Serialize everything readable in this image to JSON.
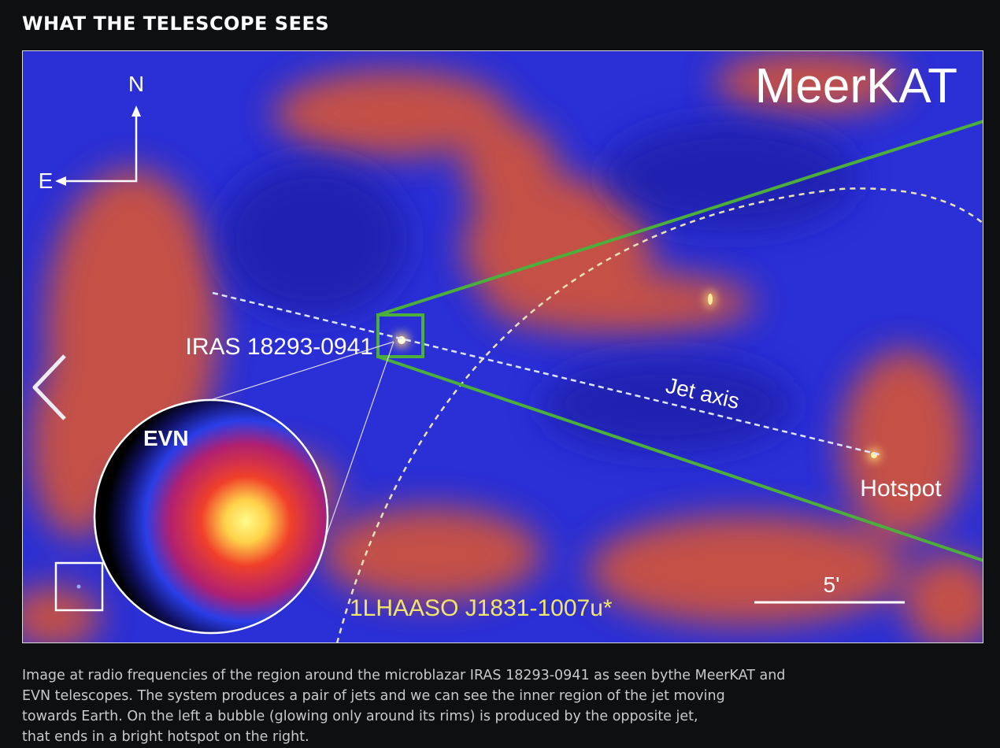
{
  "header": {
    "title": "WHAT THE TELESCOPE SEES"
  },
  "image": {
    "compass_north": "N",
    "compass_east": "E",
    "instrument": "MeerKAT",
    "source_label": "IRAS 18293-0941",
    "jet_label": "Jet axis",
    "hotspot_label": "Hotspot",
    "inset_label": "EVN",
    "lhaaso_label": "1LHAASO J1831-1007u*",
    "scale_label": "5'"
  },
  "caption": {
    "lines": [
      "Image at radio frequencies of the region around the microblazar IRAS 18293-0941 as seen bythe MeerKAT and",
      "EVN telescopes. The system produces a pair of jets and we can see the inner region of the jet moving",
      "towards Earth. On the left a bubble (glowing only around its rims) is produced by the opposite jet,",
      "that ends in a bright hotspot on the right."
    ]
  }
}
